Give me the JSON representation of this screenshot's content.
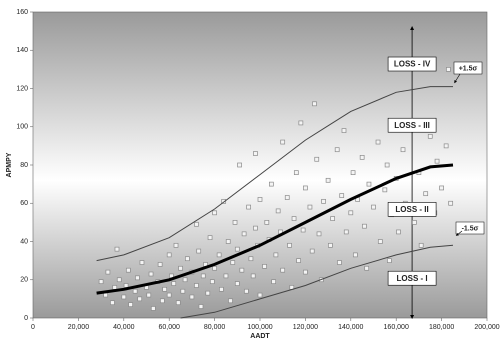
{
  "chart_data": {
    "type": "scatter",
    "xlabel": "AADT",
    "ylabel": "APMPY",
    "xlim": [
      0,
      200000
    ],
    "xticks": [
      0,
      {
        "value": 20000,
        "label": "20,000"
      },
      {
        "value": 40000,
        "label": "40,000"
      },
      {
        "value": 60000,
        "label": "60,000"
      },
      {
        "value": 80000,
        "label": "80,000"
      },
      {
        "value": 100000,
        "label": "100,000"
      },
      {
        "value": 120000,
        "label": "120,000"
      },
      {
        "value": 140000,
        "label": "140,000"
      },
      {
        "value": 160000,
        "label": "160,000"
      },
      {
        "value": 180000,
        "label": "180,000"
      },
      {
        "value": 200000,
        "label": "200,000"
      }
    ],
    "ylim": [
      0,
      160
    ],
    "yticks": [
      0,
      20,
      40,
      60,
      80,
      100,
      120,
      140,
      160
    ],
    "series": [
      {
        "kind": "scatter",
        "color": "#8a8a8a",
        "x": [
          30000,
          32000,
          33000,
          35000,
          36000,
          37000,
          38000,
          40000,
          41000,
          42000,
          43000,
          45000,
          46000,
          47000,
          48000,
          50000,
          51000,
          52000,
          53000,
          55000,
          56000,
          57000,
          58000,
          60000,
          60000,
          61000,
          62000,
          63000,
          64000,
          65000,
          66000,
          67000,
          68000,
          70000,
          70000,
          72000,
          72000,
          73000,
          74000,
          75000,
          76000,
          77000,
          78000,
          79000,
          80000,
          80000,
          82000,
          83000,
          84000,
          85000,
          86000,
          87000,
          88000,
          89000,
          90000,
          90000,
          91000,
          92000,
          93000,
          94000,
          95000,
          96000,
          97000,
          98000,
          98000,
          99000,
          100000,
          100000,
          102000,
          103000,
          104000,
          105000,
          106000,
          107000,
          108000,
          109000,
          110000,
          110000,
          112000,
          113000,
          114000,
          115000,
          116000,
          117000,
          118000,
          119000,
          120000,
          120000,
          122000,
          123000,
          124000,
          125000,
          126000,
          127000,
          128000,
          130000,
          131000,
          132000,
          134000,
          135000,
          136000,
          137000,
          138000,
          140000,
          141000,
          142000,
          143000,
          145000,
          146000,
          147000,
          148000,
          150000,
          152000,
          153000,
          155000,
          156000,
          157000,
          158000,
          160000,
          161000,
          163000,
          164000,
          166000,
          168000,
          170000,
          171000,
          173000,
          175000,
          177000,
          178000,
          180000,
          182000,
          183000,
          184000
        ],
        "values": [
          19,
          12,
          24,
          8,
          16,
          36,
          20,
          11,
          17,
          25,
          7,
          14,
          21,
          10,
          29,
          16,
          12,
          23,
          5,
          19,
          28,
          9,
          15,
          33,
          12,
          22,
          18,
          38,
          8,
          26,
          14,
          20,
          31,
          11,
          24,
          49,
          17,
          35,
          6,
          22,
          28,
          13,
          42,
          19,
          55,
          26,
          33,
          15,
          61,
          22,
          40,
          9,
          29,
          50,
          18,
          36,
          80,
          25,
          44,
          14,
          58,
          31,
          22,
          86,
          47,
          38,
          12,
          62,
          27,
          50,
          41,
          70,
          19,
          33,
          56,
          45,
          92,
          25,
          63,
          38,
          16,
          52,
          76,
          30,
          102,
          46,
          24,
          68,
          58,
          35,
          112,
          83,
          44,
          20,
          61,
          72,
          38,
          52,
          88,
          29,
          64,
          98,
          45,
          55,
          76,
          33,
          62,
          84,
          48,
          26,
          70,
          58,
          92,
          40,
          67,
          80,
          30,
          54,
          73,
          45,
          88,
          60,
          102,
          50,
          76,
          38,
          65,
          95,
          55,
          82,
          68,
          90,
          130,
          60
        ]
      },
      {
        "kind": "line",
        "color": "#444444",
        "width": 1,
        "x": [
          28000,
          40000,
          60000,
          80000,
          100000,
          120000,
          140000,
          160000,
          175000,
          185000
        ],
        "values": [
          30,
          33,
          42,
          57,
          75,
          93,
          108,
          118,
          121,
          121
        ]
      },
      {
        "kind": "line",
        "color": "#000000",
        "width": 3,
        "x": [
          28000,
          40000,
          60000,
          80000,
          100000,
          120000,
          140000,
          160000,
          175000,
          185000
        ],
        "values": [
          13,
          15,
          20,
          28,
          38,
          50,
          62,
          73,
          79,
          80
        ]
      },
      {
        "kind": "line",
        "color": "#444444",
        "width": 1,
        "x": [
          65000,
          80000,
          100000,
          120000,
          140000,
          160000,
          175000,
          185000
        ],
        "values": [
          0,
          3,
          10,
          17,
          26,
          33,
          37,
          38
        ]
      }
    ],
    "annotations": [
      "LOSS - IV",
      "LOSS - III",
      "LOSS - II",
      "LOSS - I",
      "+1.5σ",
      "-1.5σ"
    ]
  }
}
